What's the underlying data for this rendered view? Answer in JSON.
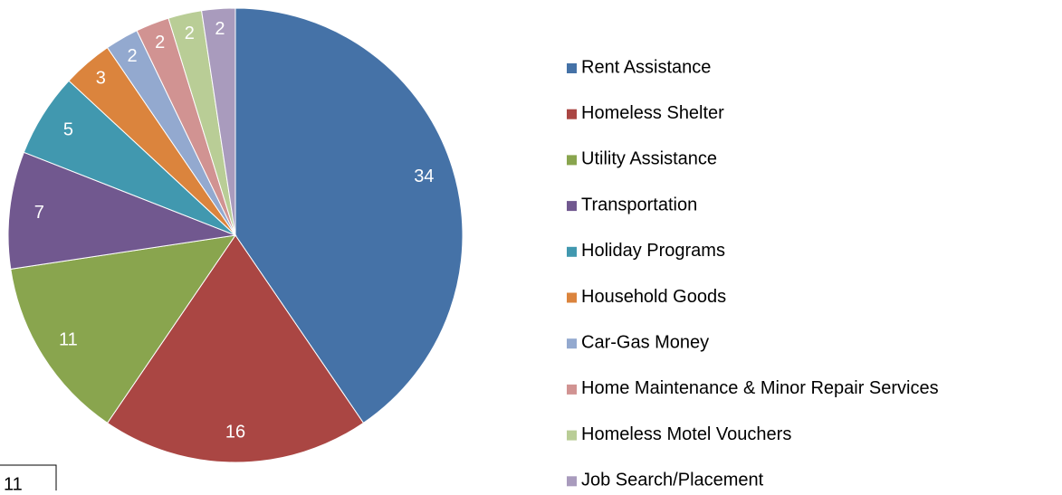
{
  "chart_data": {
    "type": "pie",
    "categories": [
      "Rent Assistance",
      "Homeless Shelter",
      "Utility Assistance",
      "Transportation",
      "Holiday Programs",
      "Household Goods",
      "Car-Gas Money",
      "Home Maintenance & Minor Repair Services",
      "Homeless Motel Vouchers",
      "Job Search/Placement"
    ],
    "values": [
      34,
      16,
      11,
      7,
      5,
      3,
      2,
      2,
      2,
      2
    ],
    "colors": [
      "#4572a7",
      "#aa4643",
      "#89a54e",
      "#71588f",
      "#4198af",
      "#db843d",
      "#93a9cf",
      "#d19392",
      "#b9cd96",
      "#a99bbd"
    ],
    "legend": "right",
    "annotation": "11"
  }
}
